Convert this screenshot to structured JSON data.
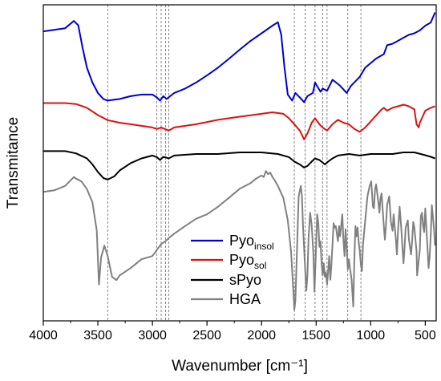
{
  "chart_data": {
    "type": "line",
    "title": "",
    "xlabel": "Wavenumber [cm⁻¹]",
    "ylabel": "Transmitance",
    "xlim": [
      4000,
      400
    ],
    "x_reversed": true,
    "x_ticks": [
      4000,
      3500,
      3000,
      2500,
      2000,
      1500,
      1000,
      500
    ],
    "y_ticks_shown": false,
    "y_units": "arbitrary, stacked spectra (0 = bottom of frame, 100 = top of frame)",
    "reference_lines_cm1": [
      3410,
      2960,
      2920,
      2880,
      2850,
      1700,
      1600,
      1510,
      1440,
      1400,
      1210,
      1090
    ],
    "legend": {
      "placement": "lower-right",
      "entries": [
        {
          "base": "Pyo",
          "sub": "insol",
          "color": "#0000cc"
        },
        {
          "base": "Pyo",
          "sub": "sol",
          "color": "#dd1111"
        },
        {
          "base": "sPyo",
          "sub": "",
          "color": "#000000"
        },
        {
          "base": "HGA",
          "sub": "",
          "color": "#808080"
        }
      ]
    },
    "series": [
      {
        "name": "Pyo_insol",
        "color": "#0000cc",
        "points": [
          [
            4000,
            91.6
          ],
          [
            3800,
            92.6
          ],
          [
            3720,
            94.9
          ],
          [
            3680,
            93.5
          ],
          [
            3640,
            86.4
          ],
          [
            3600,
            80.1
          ],
          [
            3550,
            75.4
          ],
          [
            3500,
            72.1
          ],
          [
            3450,
            70.2
          ],
          [
            3410,
            69.7
          ],
          [
            3300,
            70.2
          ],
          [
            3200,
            71.1
          ],
          [
            3100,
            71.6
          ],
          [
            3000,
            71.6
          ],
          [
            2960,
            70.7
          ],
          [
            2930,
            69.7
          ],
          [
            2900,
            71.1
          ],
          [
            2870,
            70.2
          ],
          [
            2800,
            72.1
          ],
          [
            2700,
            73.5
          ],
          [
            2600,
            75.4
          ],
          [
            2500,
            77.7
          ],
          [
            2400,
            80.1
          ],
          [
            2300,
            82.9
          ],
          [
            2200,
            85.8
          ],
          [
            2100,
            88.6
          ],
          [
            2000,
            91.0
          ],
          [
            1900,
            93.4
          ],
          [
            1850,
            94.5
          ],
          [
            1820,
            90.6
          ],
          [
            1790,
            80.1
          ],
          [
            1760,
            71.6
          ],
          [
            1720,
            69.7
          ],
          [
            1690,
            72.1
          ],
          [
            1650,
            70.7
          ],
          [
            1610,
            69.2
          ],
          [
            1580,
            71.1
          ],
          [
            1530,
            72.1
          ],
          [
            1510,
            75.4
          ],
          [
            1460,
            72.5
          ],
          [
            1440,
            73.5
          ],
          [
            1400,
            72.8
          ],
          [
            1350,
            76.3
          ],
          [
            1280,
            74.4
          ],
          [
            1220,
            72.1
          ],
          [
            1180,
            74.4
          ],
          [
            1100,
            77.2
          ],
          [
            1050,
            80.1
          ],
          [
            950,
            83.0
          ],
          [
            880,
            84.4
          ],
          [
            850,
            87.2
          ],
          [
            800,
            87.7
          ],
          [
            750,
            88.6
          ],
          [
            700,
            89.6
          ],
          [
            650,
            90.5
          ],
          [
            600,
            91.0
          ],
          [
            550,
            91.9
          ],
          [
            500,
            93.4
          ],
          [
            450,
            94.4
          ],
          [
            410,
            97.6
          ]
        ]
      },
      {
        "name": "Pyo_sol",
        "color": "#dd1111",
        "points": [
          [
            4000,
            68.9
          ],
          [
            3800,
            68.9
          ],
          [
            3700,
            68.6
          ],
          [
            3600,
            67.4
          ],
          [
            3500,
            65.1
          ],
          [
            3410,
            63.5
          ],
          [
            3300,
            62.7
          ],
          [
            3200,
            62.2
          ],
          [
            3100,
            61.7
          ],
          [
            3000,
            61.2
          ],
          [
            2960,
            60.7
          ],
          [
            2920,
            61.2
          ],
          [
            2850,
            60.2
          ],
          [
            2800,
            61.2
          ],
          [
            2600,
            62.2
          ],
          [
            2400,
            63.6
          ],
          [
            2200,
            64.6
          ],
          [
            2000,
            65.5
          ],
          [
            1900,
            66.0
          ],
          [
            1800,
            65.5
          ],
          [
            1750,
            64.1
          ],
          [
            1700,
            62.2
          ],
          [
            1650,
            60.2
          ],
          [
            1610,
            57.4
          ],
          [
            1580,
            59.3
          ],
          [
            1540,
            62.7
          ],
          [
            1510,
            64.1
          ],
          [
            1470,
            62.2
          ],
          [
            1440,
            61.2
          ],
          [
            1400,
            60.2
          ],
          [
            1350,
            62.2
          ],
          [
            1300,
            63.6
          ],
          [
            1250,
            62.7
          ],
          [
            1200,
            62.2
          ],
          [
            1150,
            60.7
          ],
          [
            1100,
            59.8
          ],
          [
            1050,
            61.2
          ],
          [
            950,
            65.0
          ],
          [
            900,
            66.9
          ],
          [
            880,
            67.4
          ],
          [
            850,
            66.5
          ],
          [
            800,
            67.4
          ],
          [
            750,
            67.9
          ],
          [
            700,
            68.4
          ],
          [
            650,
            67.9
          ],
          [
            600,
            66.9
          ],
          [
            580,
            62.2
          ],
          [
            560,
            61.2
          ],
          [
            550,
            62.7
          ],
          [
            500,
            66.5
          ],
          [
            450,
            67.4
          ],
          [
            410,
            67.9
          ]
        ]
      },
      {
        "name": "sPyo",
        "color": "#000000",
        "points": [
          [
            4000,
            53.7
          ],
          [
            3800,
            53.7
          ],
          [
            3700,
            53.0
          ],
          [
            3600,
            51.4
          ],
          [
            3550,
            49.5
          ],
          [
            3500,
            47.1
          ],
          [
            3450,
            45.2
          ],
          [
            3410,
            44.7
          ],
          [
            3350,
            45.7
          ],
          [
            3300,
            47.6
          ],
          [
            3200,
            49.9
          ],
          [
            3100,
            51.4
          ],
          [
            3000,
            52.3
          ],
          [
            2960,
            51.8
          ],
          [
            2930,
            50.9
          ],
          [
            2900,
            51.9
          ],
          [
            2850,
            51.4
          ],
          [
            2800,
            52.3
          ],
          [
            2600,
            52.8
          ],
          [
            2400,
            52.8
          ],
          [
            2200,
            53.3
          ],
          [
            2000,
            53.3
          ],
          [
            1850,
            52.8
          ],
          [
            1750,
            51.8
          ],
          [
            1700,
            50.4
          ],
          [
            1650,
            49.5
          ],
          [
            1610,
            48.5
          ],
          [
            1580,
            49.0
          ],
          [
            1540,
            50.4
          ],
          [
            1510,
            51.4
          ],
          [
            1470,
            50.9
          ],
          [
            1420,
            49.5
          ],
          [
            1390,
            50.4
          ],
          [
            1350,
            51.4
          ],
          [
            1300,
            52.3
          ],
          [
            1200,
            52.8
          ],
          [
            1100,
            52.3
          ],
          [
            1000,
            52.8
          ],
          [
            900,
            52.8
          ],
          [
            800,
            52.8
          ],
          [
            700,
            53.3
          ],
          [
            600,
            53.3
          ],
          [
            500,
            52.4
          ],
          [
            450,
            51.9
          ],
          [
            410,
            51.4
          ]
        ]
      },
      {
        "name": "HGA",
        "color": "#808080",
        "points": [
          [
            4000,
            40.8
          ],
          [
            3900,
            41.3
          ],
          [
            3800,
            42.7
          ],
          [
            3720,
            45.5
          ],
          [
            3700,
            45.0
          ],
          [
            3650,
            44.1
          ],
          [
            3600,
            41.7
          ],
          [
            3550,
            37.5
          ],
          [
            3510,
            28.5
          ],
          [
            3490,
            11.5
          ],
          [
            3470,
            20.1
          ],
          [
            3440,
            23.8
          ],
          [
            3410,
            20.5
          ],
          [
            3390,
            17.2
          ],
          [
            3370,
            13.9
          ],
          [
            3330,
            12.9
          ],
          [
            3300,
            14.4
          ],
          [
            3200,
            16.7
          ],
          [
            3100,
            19.5
          ],
          [
            3000,
            20.5
          ],
          [
            2950,
            22.9
          ],
          [
            2920,
            24.3
          ],
          [
            2880,
            25.2
          ],
          [
            2850,
            26.2
          ],
          [
            2800,
            27.6
          ],
          [
            2700,
            30.0
          ],
          [
            2600,
            32.3
          ],
          [
            2500,
            33.7
          ],
          [
            2400,
            36.1
          ],
          [
            2300,
            38.9
          ],
          [
            2200,
            41.8
          ],
          [
            2100,
            43.6
          ],
          [
            2050,
            45.0
          ],
          [
            2000,
            46.0
          ],
          [
            1980,
            45.5
          ],
          [
            1960,
            47.4
          ],
          [
            1940,
            46.4
          ],
          [
            1920,
            46.9
          ],
          [
            1900,
            45.5
          ],
          [
            1880,
            44.5
          ],
          [
            1850,
            42.7
          ],
          [
            1800,
            38.9
          ],
          [
            1760,
            31.8
          ],
          [
            1730,
            21.9
          ],
          [
            1710,
            10.1
          ],
          [
            1700,
            3.5
          ],
          [
            1690,
            6.4
          ],
          [
            1680,
            17.7
          ],
          [
            1660,
            39.4
          ],
          [
            1640,
            42.7
          ],
          [
            1630,
            39.4
          ],
          [
            1620,
            30.0
          ],
          [
            1600,
            15.8
          ],
          [
            1590,
            9.6
          ],
          [
            1580,
            14.4
          ],
          [
            1570,
            26.2
          ],
          [
            1555,
            34.2
          ],
          [
            1540,
            30.0
          ],
          [
            1525,
            21.0
          ],
          [
            1515,
            9.2
          ],
          [
            1505,
            19.1
          ],
          [
            1490,
            33.7
          ],
          [
            1480,
            30.9
          ],
          [
            1470,
            23.4
          ],
          [
            1460,
            25.2
          ],
          [
            1450,
            18.2
          ],
          [
            1440,
            14.4
          ],
          [
            1430,
            18.2
          ],
          [
            1420,
            13.9
          ],
          [
            1410,
            15.3
          ],
          [
            1400,
            11.5
          ],
          [
            1390,
            15.8
          ],
          [
            1380,
            20.5
          ],
          [
            1370,
            13.0
          ],
          [
            1360,
            17.7
          ],
          [
            1340,
            30.9
          ],
          [
            1330,
            29.5
          ],
          [
            1320,
            30.0
          ],
          [
            1300,
            25.2
          ],
          [
            1290,
            30.0
          ],
          [
            1280,
            26.7
          ],
          [
            1260,
            33.7
          ],
          [
            1250,
            25.7
          ],
          [
            1240,
            20.5
          ],
          [
            1230,
            29.0
          ],
          [
            1220,
            22.9
          ],
          [
            1210,
            16.3
          ],
          [
            1200,
            19.5
          ],
          [
            1190,
            16.7
          ],
          [
            1175,
            13.0
          ],
          [
            1160,
            4.5
          ],
          [
            1150,
            19.1
          ],
          [
            1140,
            30.0
          ],
          [
            1130,
            26.7
          ],
          [
            1120,
            29.5
          ],
          [
            1110,
            24.8
          ],
          [
            1100,
            22.0
          ],
          [
            1090,
            17.7
          ],
          [
            1080,
            15.8
          ],
          [
            1070,
            24.3
          ],
          [
            1050,
            31.8
          ],
          [
            1030,
            39.4
          ],
          [
            1010,
            42.7
          ],
          [
            995,
            44.1
          ],
          [
            980,
            36.1
          ],
          [
            970,
            35.6
          ],
          [
            960,
            41.8
          ],
          [
            950,
            43.2
          ],
          [
            930,
            37.5
          ],
          [
            920,
            34.2
          ],
          [
            910,
            38.9
          ],
          [
            900,
            40.3
          ],
          [
            880,
            30.0
          ],
          [
            870,
            25.7
          ],
          [
            860,
            30.4
          ],
          [
            850,
            36.6
          ],
          [
            830,
            39.4
          ],
          [
            815,
            31.3
          ],
          [
            800,
            28.5
          ],
          [
            790,
            33.7
          ],
          [
            770,
            26.2
          ],
          [
            760,
            21.0
          ],
          [
            750,
            28.5
          ],
          [
            735,
            36.1
          ],
          [
            720,
            29.5
          ],
          [
            700,
            18.2
          ],
          [
            690,
            22.9
          ],
          [
            680,
            29.5
          ],
          [
            660,
            31.8
          ],
          [
            650,
            25.7
          ],
          [
            630,
            21.0
          ],
          [
            620,
            25.7
          ],
          [
            610,
            31.3
          ],
          [
            600,
            29.5
          ],
          [
            580,
            22.0
          ],
          [
            575,
            14.4
          ],
          [
            560,
            19.1
          ],
          [
            550,
            22.4
          ],
          [
            540,
            33.2
          ],
          [
            530,
            34.2
          ],
          [
            520,
            30.0
          ],
          [
            510,
            28.1
          ],
          [
            500,
            35.6
          ],
          [
            480,
            23.4
          ],
          [
            470,
            16.7
          ],
          [
            460,
            20.1
          ],
          [
            450,
            27.1
          ],
          [
            440,
            36.6
          ],
          [
            420,
            29.0
          ],
          [
            410,
            23.8
          ]
        ]
      }
    ]
  }
}
